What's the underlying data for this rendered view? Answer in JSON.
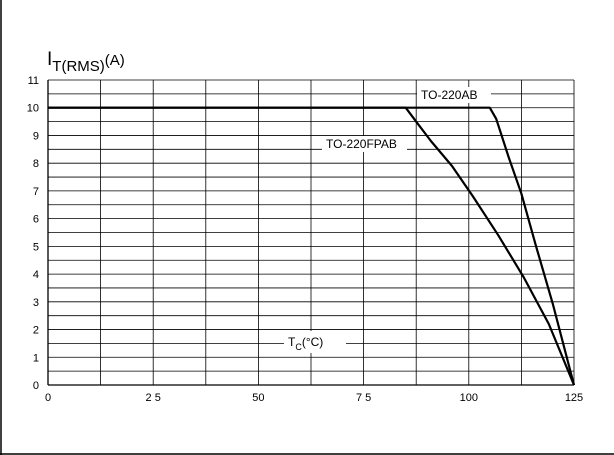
{
  "chart_data": {
    "type": "line",
    "title": "",
    "ylabel": {
      "main": "I",
      "sub": "T(RMS)",
      "unit": "(A)"
    },
    "xlabel": {
      "main": "T",
      "sub": "C",
      "unit": "(°C)"
    },
    "xlim": [
      0,
      125
    ],
    "ylim": [
      0,
      11
    ],
    "x_ticks": [
      0,
      25,
      50,
      75,
      100,
      125
    ],
    "x_tick_labels": [
      "0",
      "2 5",
      "50",
      "7 5",
      "100",
      "125"
    ],
    "y_ticks": [
      0,
      1,
      2,
      3,
      4,
      5,
      6,
      7,
      8,
      9,
      10,
      11
    ],
    "y_tick_labels": [
      "0",
      "1",
      "2",
      "3",
      "4",
      "5",
      "6",
      "7",
      "8",
      "9",
      "10",
      "11"
    ],
    "grid": true,
    "series": [
      {
        "name": "TO-220AB",
        "x": [
          0,
          105,
          106.5,
          109.5,
          112.5,
          116,
          120,
          125
        ],
        "y": [
          10,
          10,
          9.6,
          8.2,
          6.9,
          5.0,
          2.9,
          0
        ]
      },
      {
        "name": "TO-220FPAB",
        "x": [
          0,
          85,
          88,
          91,
          96,
          101,
          107,
          113,
          119,
          125
        ],
        "y": [
          10,
          10,
          9.4,
          8.8,
          7.9,
          6.8,
          5.4,
          3.9,
          2.2,
          0
        ]
      }
    ],
    "annotations": [
      {
        "text": "TO-220AB",
        "series": "TO-220AB"
      },
      {
        "text": "TO-220FPAB",
        "series": "TO-220FPAB"
      }
    ]
  }
}
